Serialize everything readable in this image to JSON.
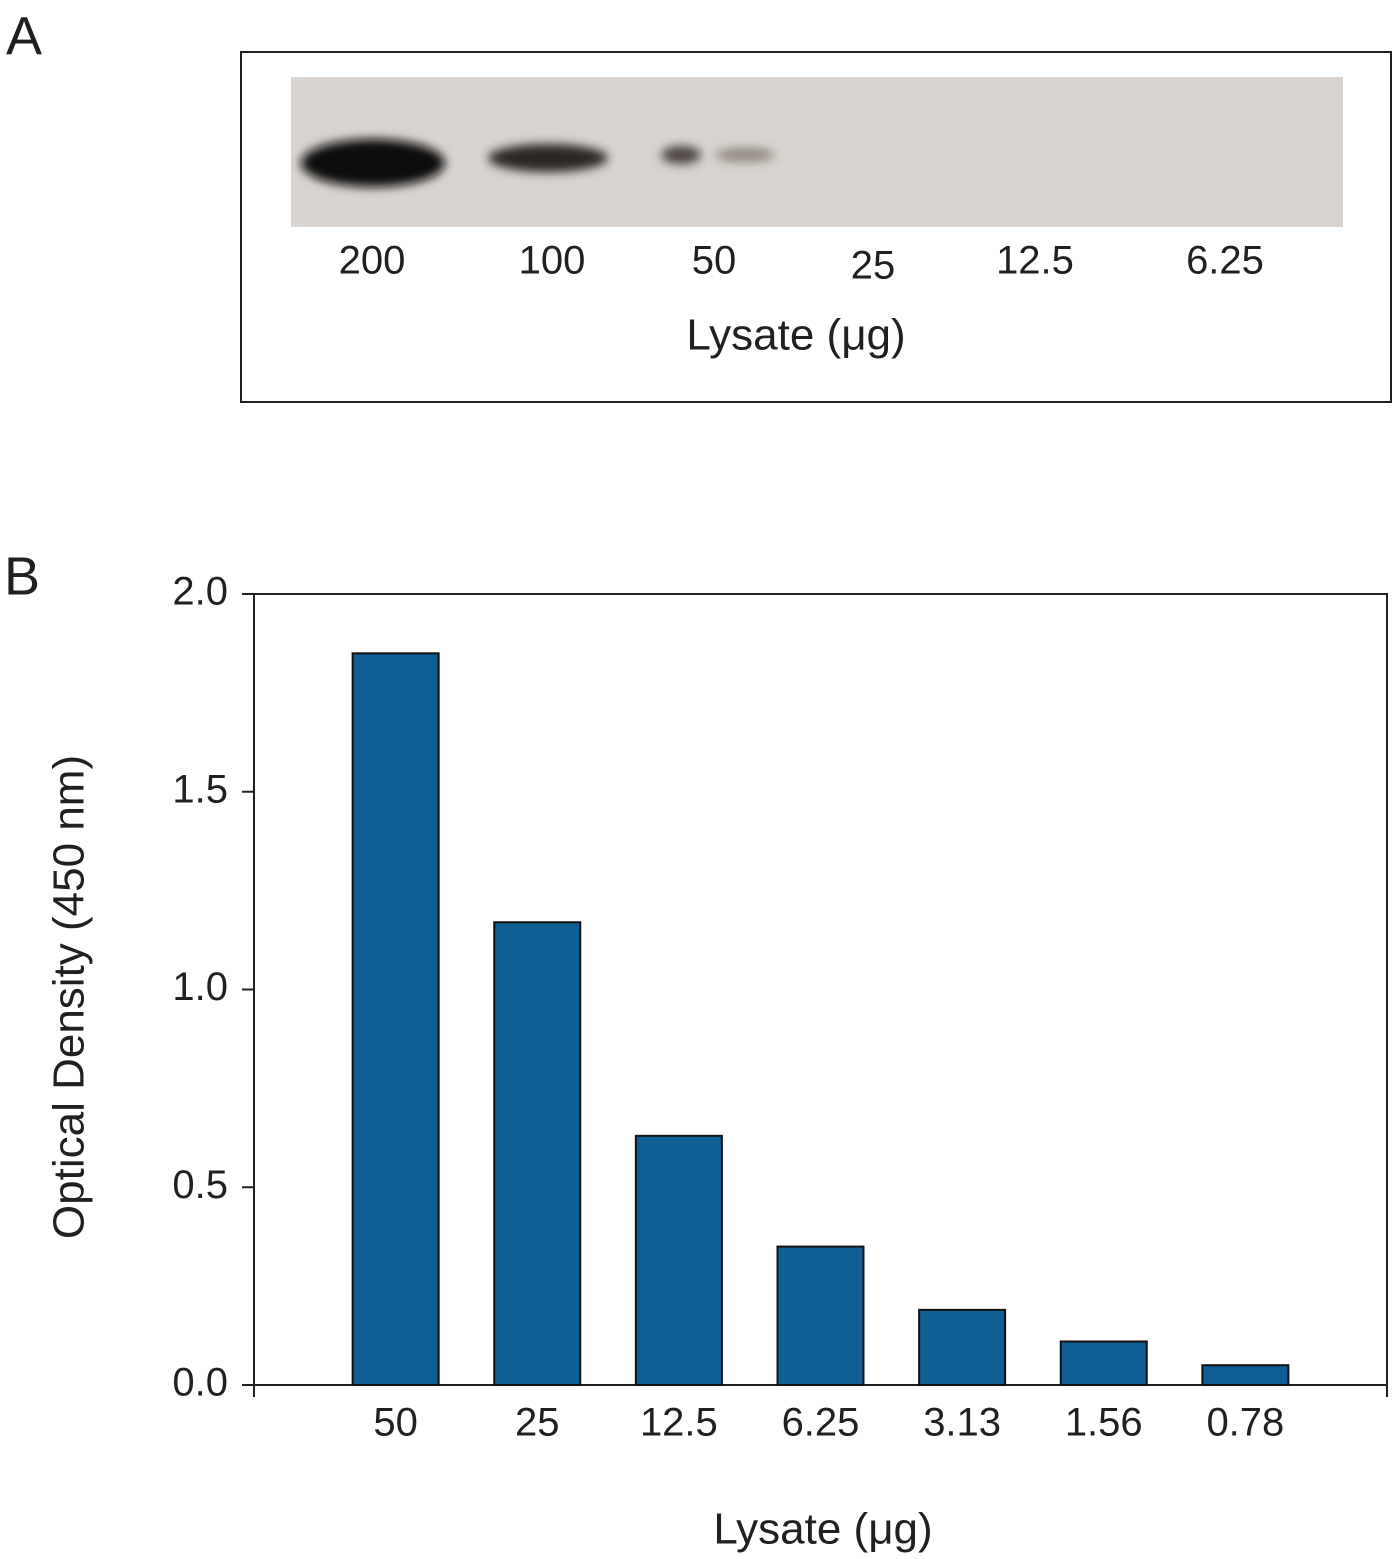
{
  "panel_a": {
    "label": "A",
    "lanes": [
      "200",
      "100",
      "50",
      "25",
      "12.5",
      "6.25"
    ],
    "x_label": "Lysate (μg)"
  },
  "chart_data": {
    "type": "bar",
    "label": "B",
    "categories": [
      "50",
      "25",
      "12.5",
      "6.25",
      "3.13",
      "1.56",
      "0.78"
    ],
    "values": [
      1.85,
      1.17,
      0.63,
      0.35,
      0.19,
      0.11,
      0.05
    ],
    "color": "#0f5e96",
    "x_label": "Lysate (μg)",
    "y_label": "Optical Density (450 nm)",
    "ylim": [
      0,
      2
    ],
    "yticks": [
      {
        "value": 0,
        "label": "0.0"
      },
      0.5,
      {
        "value": 1,
        "label": "1.0"
      },
      1.5,
      {
        "value": 2,
        "label": "2.0"
      }
    ],
    "grid": false
  }
}
